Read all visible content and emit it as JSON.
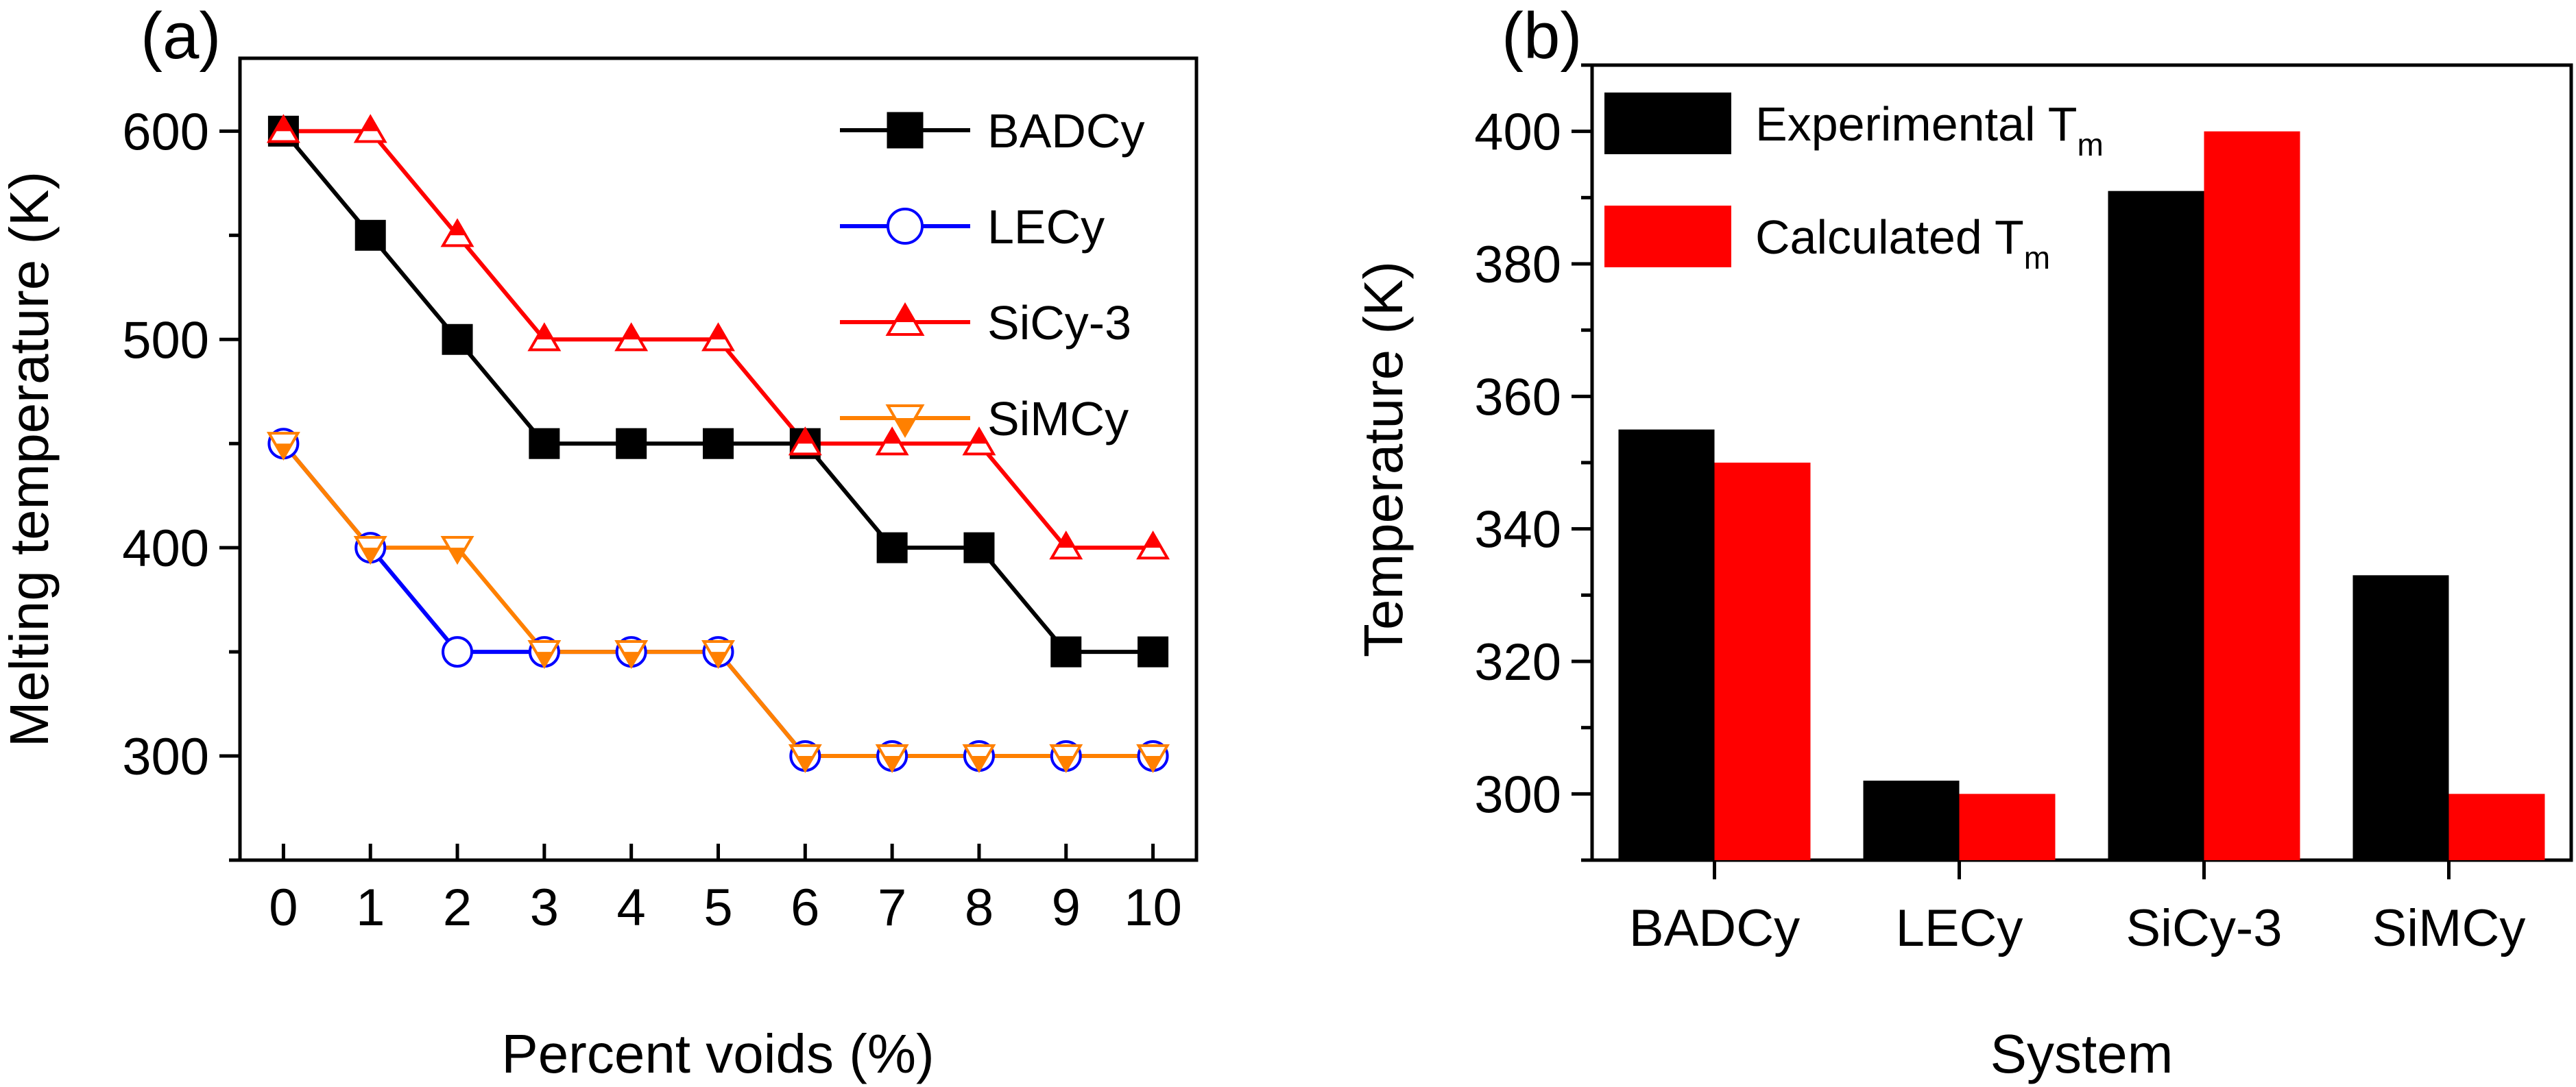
{
  "chart_data": [
    {
      "panel_label": "(a)",
      "type": "line",
      "xlabel": "Percent voids (%)",
      "ylabel": "Melting temperature (K)",
      "x": [
        0,
        1,
        2,
        3,
        4,
        5,
        6,
        7,
        8,
        9,
        10
      ],
      "xlim": [
        -0.5,
        10.5
      ],
      "ylim": [
        250,
        635
      ],
      "xticks": [
        "0",
        "1",
        "2",
        "3",
        "4",
        "5",
        "6",
        "7",
        "8",
        "9",
        "10"
      ],
      "yticks": [
        300,
        400,
        500,
        600
      ],
      "legend_position": "top-right",
      "grid": false,
      "series": [
        {
          "name": "BADCy",
          "color": "#000000",
          "marker": "square-filled",
          "values": [
            600,
            550,
            500,
            450,
            450,
            450,
            450,
            400,
            400,
            350,
            350
          ]
        },
        {
          "name": "LECy",
          "color": "#0000ff",
          "marker": "circle-open",
          "values": [
            450,
            400,
            350,
            350,
            350,
            350,
            300,
            300,
            300,
            300,
            300
          ]
        },
        {
          "name": "SiCy-3",
          "color": "#ff0000",
          "marker": "triangle-up-half",
          "values": [
            600,
            600,
            550,
            500,
            500,
            500,
            450,
            450,
            450,
            400,
            400
          ]
        },
        {
          "name": "SiMCy",
          "color": "#ff8000",
          "marker": "triangle-down-half",
          "values": [
            450,
            400,
            400,
            350,
            350,
            350,
            300,
            300,
            300,
            300,
            300
          ]
        }
      ]
    },
    {
      "panel_label": "(b)",
      "type": "bar",
      "xlabel": "System",
      "ylabel": "Temperature (K)",
      "categories": [
        "BADCy",
        "LECy",
        "SiCy-3",
        "SiMCy"
      ],
      "ylim": [
        290,
        410
      ],
      "yticks": [
        300,
        320,
        340,
        360,
        380,
        400
      ],
      "legend_position": "top-left",
      "grid": false,
      "series": [
        {
          "name": "Experimental T",
          "name_subscript": "m",
          "color": "#000000",
          "values": [
            355,
            302,
            391,
            333
          ]
        },
        {
          "name": "Calculated T",
          "name_subscript": "m",
          "color": "#ff0000",
          "values": [
            350,
            300,
            400,
            300
          ]
        }
      ]
    }
  ]
}
